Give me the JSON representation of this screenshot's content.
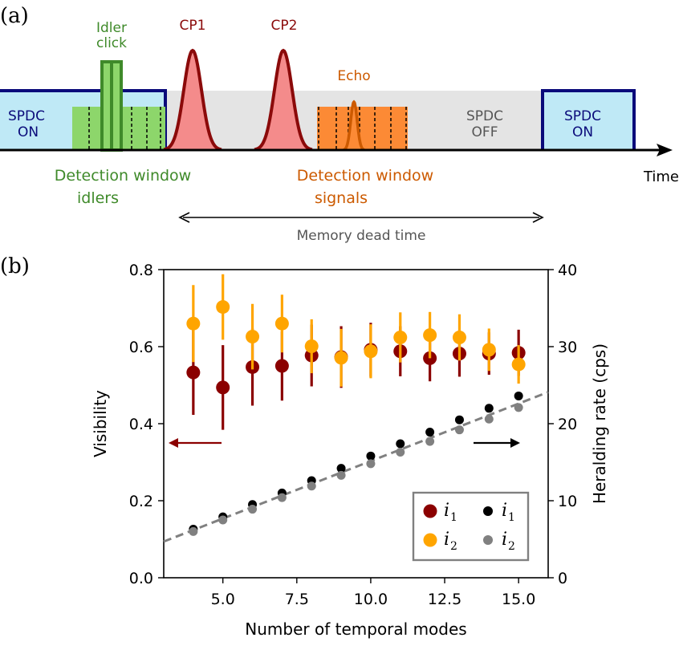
{
  "panel_a": {
    "label": "(a)",
    "idler_click": [
      "Idler",
      "click"
    ],
    "cp1": "CP1",
    "cp2": "CP2",
    "echo": "Echo",
    "spdc_on": [
      "SPDC",
      "ON"
    ],
    "spdc_off": [
      "SPDC",
      "OFF"
    ],
    "det_idlers": [
      "Detection window",
      "idlers"
    ],
    "det_signals": [
      "Detection window",
      "signals"
    ],
    "time": "Time",
    "dead_time": "Memory dead time",
    "colors": {
      "spdc_fill": "#bfe9f6",
      "spdc_border": "#0a0a7a",
      "idler_green": "#3f8a2a",
      "idler_fill": "#8dd66b",
      "cp_fill": "#f48b8b",
      "cp_line": "#8b0a0a",
      "echo_orange": "#cc5a00",
      "signal_fill": "#fc8a35",
      "off_grey": "#e4e4e4",
      "text_grey": "#555555"
    }
  },
  "panel_b_label": "(b)",
  "chart_data": {
    "type": "scatter",
    "xlabel": "Number of temporal modes",
    "ylabel_left": "Visibility",
    "ylabel_right": "Heralding rate (cps)",
    "xlim": [
      3.0,
      16.0
    ],
    "ylim_left": [
      0.0,
      0.8
    ],
    "ylim_right": [
      0,
      40
    ],
    "xticks": [
      "5.0",
      "7.5",
      "10.0",
      "12.5",
      "15.0"
    ],
    "xtick_values": [
      5,
      7.5,
      10,
      12.5,
      15
    ],
    "yticks_left": [
      "0.0",
      "0.2",
      "0.4",
      "0.6",
      "0.8"
    ],
    "ytick_left_values": [
      0,
      0.2,
      0.4,
      0.6,
      0.8
    ],
    "yticks_right": [
      "0",
      "10",
      "20",
      "30",
      "40"
    ],
    "ytick_right_values": [
      0,
      10,
      20,
      30,
      40
    ],
    "x": [
      4,
      5,
      6,
      7,
      8,
      9,
      10,
      11,
      12,
      13,
      14,
      15
    ],
    "series": [
      {
        "name": "i1",
        "axis": "left",
        "color": "#8b0000",
        "values": [
          0.533,
          0.494,
          0.547,
          0.55,
          0.577,
          0.573,
          0.592,
          0.588,
          0.57,
          0.582,
          0.582,
          0.584
        ],
        "err": [
          0.11,
          0.11,
          0.1,
          0.09,
          0.08,
          0.08,
          0.07,
          0.065,
          0.06,
          0.06,
          0.055,
          0.06
        ]
      },
      {
        "name": "i2",
        "axis": "left",
        "color": "#ffa500",
        "values": [
          0.66,
          0.703,
          0.626,
          0.66,
          0.601,
          0.571,
          0.588,
          0.624,
          0.63,
          0.624,
          0.592,
          0.554
        ],
        "err": [
          0.1,
          0.085,
          0.085,
          0.075,
          0.07,
          0.075,
          0.07,
          0.065,
          0.06,
          0.06,
          0.055,
          0.05
        ]
      },
      {
        "name": "i1",
        "axis": "right",
        "color": "#000000",
        "values": [
          6.3,
          7.9,
          9.5,
          11.0,
          12.6,
          14.2,
          15.8,
          17.4,
          18.9,
          20.5,
          22.0,
          23.6
        ]
      },
      {
        "name": "i2",
        "axis": "right",
        "color": "#808080",
        "values": [
          6.0,
          7.5,
          8.9,
          10.4,
          11.9,
          13.3,
          14.8,
          16.3,
          17.7,
          19.2,
          20.6,
          22.1
        ]
      }
    ],
    "fit_line": {
      "x": [
        3.0,
        16.0
      ],
      "y_right": [
        4.7,
        24.1
      ],
      "color": "#808080",
      "style": "dashed"
    },
    "legend": {
      "placement": "lower-right",
      "entries": [
        {
          "label": "i",
          "sub": "1",
          "color": "#8b0000"
        },
        {
          "label": "i",
          "sub": "1",
          "color": "#000000"
        },
        {
          "label": "i",
          "sub": "2",
          "color": "#ffa500"
        },
        {
          "label": "i",
          "sub": "2",
          "color": "#808080"
        }
      ]
    },
    "arrows": {
      "left_color": "#8b0000",
      "right_color": "#000000"
    }
  }
}
